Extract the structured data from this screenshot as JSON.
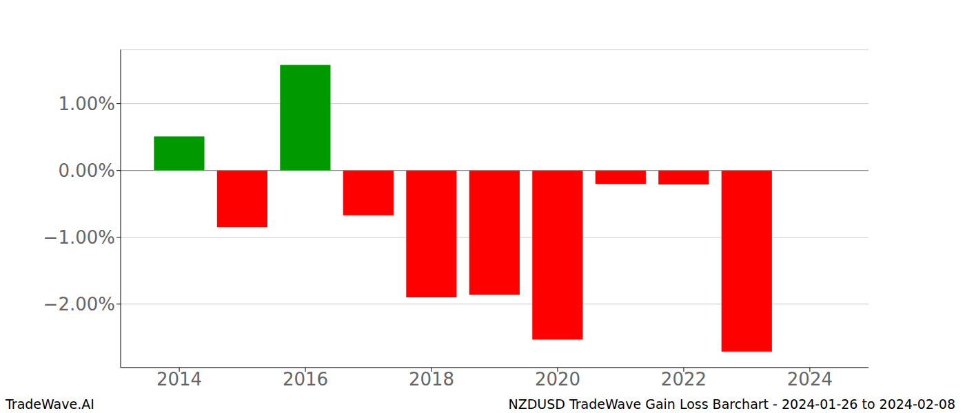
{
  "chart_data": {
    "type": "bar",
    "title": "NZDUSD TradeWave Gain Loss Barchart - 2024-01-26 to 2024-02-08",
    "annotations": [
      "TradeWave.AI"
    ],
    "x": [
      2014,
      2015,
      2016,
      2017,
      2018,
      2019,
      2020,
      2021,
      2022,
      2023
    ],
    "values": [
      0.51,
      -0.85,
      1.58,
      -0.67,
      -1.9,
      -1.86,
      -2.53,
      -0.2,
      -0.21,
      -2.71
    ],
    "colors": [
      "#009900",
      "#ff0000",
      "#009900",
      "#ff0000",
      "#ff0000",
      "#ff0000",
      "#ff0000",
      "#ff0000",
      "#ff0000",
      "#ff0000"
    ],
    "xlim": [
      2013.07,
      2024.93
    ],
    "xticks": [
      2014,
      2016,
      2018,
      2020,
      2022,
      2024
    ],
    "ylim": [
      -2.95,
      1.81
    ],
    "yticks": [
      {
        "value": -2,
        "label": "−2.00%"
      },
      {
        "value": -1,
        "label": "−1.00%"
      },
      {
        "value": 0,
        "label": "0.00%"
      },
      {
        "value": 1,
        "label": "1.00%"
      }
    ],
    "grid": true
  }
}
